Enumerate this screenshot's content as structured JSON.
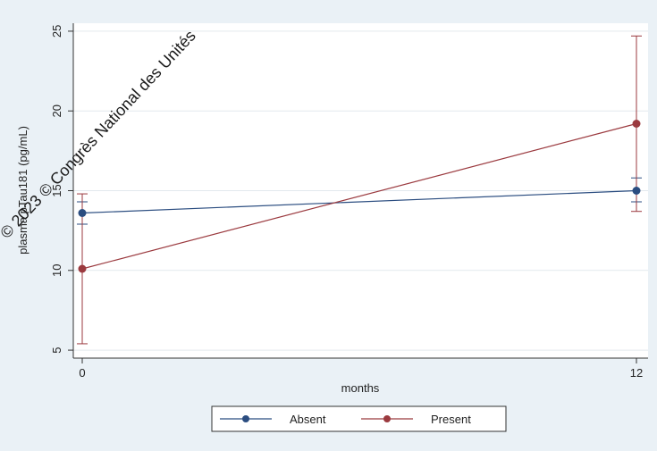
{
  "chart_data": {
    "type": "line",
    "title": "",
    "xlabel": "months",
    "ylabel": "plasma pTau181 (pg/mL)",
    "x": [
      0,
      12
    ],
    "x_ticks": [
      "0",
      "12"
    ],
    "y_ticks": [
      "5",
      "10",
      "15",
      "20",
      "25"
    ],
    "xlim": [
      0,
      12
    ],
    "ylim": [
      4.5,
      25.5
    ],
    "grid": true,
    "legend_position": "bottom",
    "series": [
      {
        "name": "Absent",
        "color": "#2b4d80",
        "values": [
          13.6,
          15.0
        ],
        "err_low": [
          12.9,
          14.3
        ],
        "err_high": [
          14.3,
          15.8
        ]
      },
      {
        "name": "Present",
        "color": "#9b3a3f",
        "values": [
          10.1,
          19.2
        ],
        "err_low": [
          5.4,
          13.7
        ],
        "err_high": [
          14.8,
          24.7
        ]
      }
    ]
  },
  "watermark": "© 2023 © Congrès National des Unités"
}
